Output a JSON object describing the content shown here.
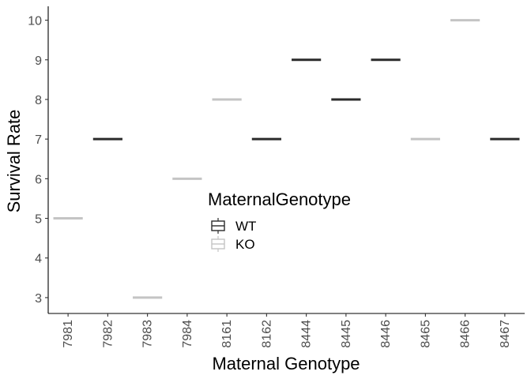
{
  "chart_data": {
    "type": "boxplot",
    "xlabel": "Maternal Genotype",
    "ylabel": "Survival Rate",
    "categories": [
      "7981",
      "7982",
      "7983",
      "7984",
      "8161",
      "8162",
      "8444",
      "8445",
      "8446",
      "8465",
      "8466",
      "8467"
    ],
    "values": [
      5,
      7,
      3,
      6,
      8,
      7,
      9,
      8,
      9,
      7,
      10,
      7
    ],
    "groups": [
      "KO",
      "WT",
      "KO",
      "KO",
      "KO",
      "WT",
      "WT",
      "WT",
      "WT",
      "KO",
      "KO",
      "WT"
    ],
    "ylim": [
      2.6,
      10.35
    ],
    "yticks": [
      3,
      4,
      5,
      6,
      7,
      8,
      9,
      10
    ],
    "legend": {
      "title": "MaternalGenotype",
      "entries": [
        {
          "name": "WT",
          "color": "#2b2b2b"
        },
        {
          "name": "KO",
          "color": "#c4c4c4"
        }
      ],
      "placement": "center"
    },
    "grid": false
  }
}
